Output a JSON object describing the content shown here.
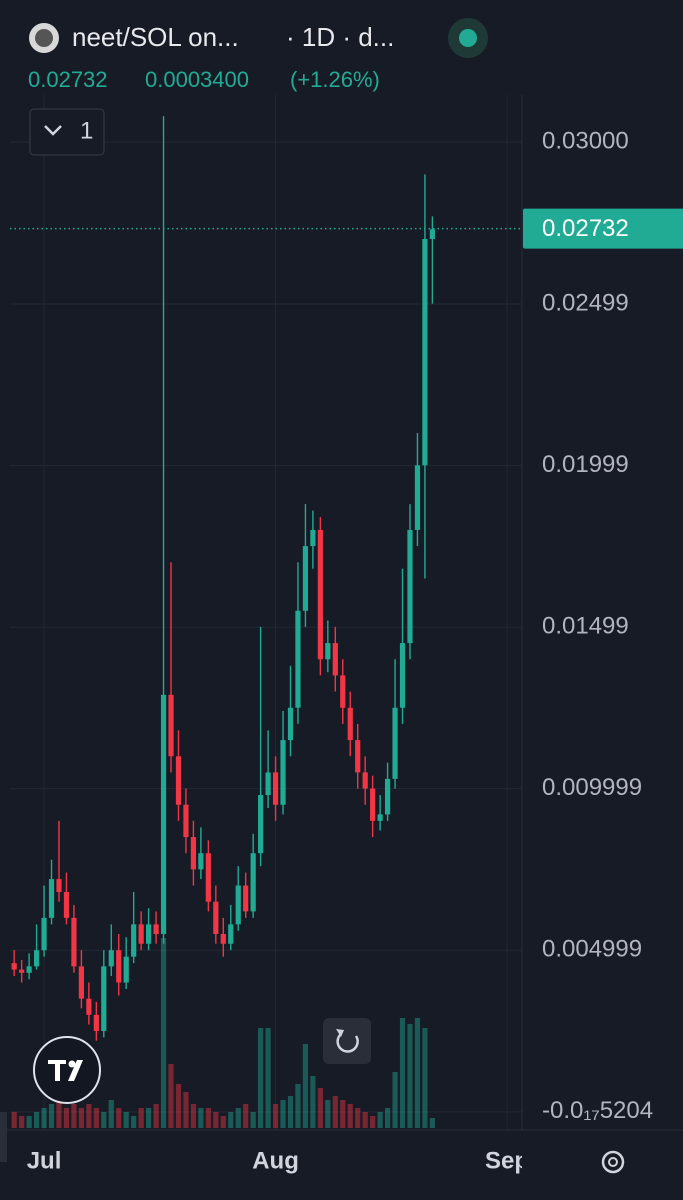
{
  "header": {
    "symbol": "neet/SOL on...",
    "interval": "· 1D · d...",
    "price": "0.02732",
    "change": "0.0003400",
    "change_pct": "(+1.26%)",
    "indicator_count": "1"
  },
  "chart_data": {
    "type": "candlestick",
    "up_color": "#22ab94",
    "down_color": "#f23645",
    "open": [
      0.0046,
      0.0044,
      0.0043,
      0.0045,
      0.005,
      0.006,
      0.0072,
      0.0068,
      0.006,
      0.0045,
      0.0035,
      0.003,
      0.0025,
      0.0045,
      0.005,
      0.004,
      0.0048,
      0.0058,
      0.0052,
      0.0058,
      0.0055,
      0.0129,
      0.011,
      0.0095,
      0.0085,
      0.0075,
      0.008,
      0.0065,
      0.0055,
      0.0052,
      0.0058,
      0.007,
      0.0062,
      0.008,
      0.0098,
      0.0105,
      0.0095,
      0.0115,
      0.0125,
      0.0155,
      0.0175,
      0.018,
      0.014,
      0.0145,
      0.0135,
      0.0125,
      0.0115,
      0.0105,
      0.01,
      0.009,
      0.0092,
      0.0103,
      0.0125,
      0.0145,
      0.018,
      0.02,
      0.027
    ],
    "high": [
      0.005,
      0.0047,
      0.0049,
      0.0058,
      0.007,
      0.0078,
      0.009,
      0.0074,
      0.0064,
      0.005,
      0.004,
      0.0034,
      0.005,
      0.0058,
      0.0055,
      0.0054,
      0.0068,
      0.0062,
      0.0063,
      0.0062,
      0.0308,
      0.017,
      0.0118,
      0.01,
      0.009,
      0.0088,
      0.0084,
      0.007,
      0.006,
      0.0064,
      0.0076,
      0.0074,
      0.0086,
      0.015,
      0.0118,
      0.011,
      0.0124,
      0.0138,
      0.017,
      0.0188,
      0.0186,
      0.0184,
      0.0152,
      0.015,
      0.014,
      0.013,
      0.012,
      0.011,
      0.0104,
      0.0098,
      0.0108,
      0.014,
      0.0168,
      0.0188,
      0.021,
      0.029,
      0.0277
    ],
    "low": [
      0.0042,
      0.004,
      0.0041,
      0.0044,
      0.0048,
      0.0058,
      0.0065,
      0.0058,
      0.0043,
      0.0032,
      0.0027,
      0.0022,
      0.0023,
      0.0042,
      0.0036,
      0.0038,
      0.0046,
      0.005,
      0.005,
      0.0052,
      0.0052,
      0.0105,
      0.009,
      0.008,
      0.007,
      0.0072,
      0.0062,
      0.0052,
      0.0048,
      0.005,
      0.0056,
      0.006,
      0.006,
      0.0076,
      0.0094,
      0.009,
      0.0092,
      0.011,
      0.012,
      0.015,
      0.0168,
      0.0135,
      0.0136,
      0.013,
      0.012,
      0.011,
      0.01,
      0.0095,
      0.0085,
      0.0087,
      0.009,
      0.01,
      0.012,
      0.014,
      0.0175,
      0.0165,
      0.025
    ],
    "close": [
      0.0044,
      0.0043,
      0.0045,
      0.005,
      0.006,
      0.0072,
      0.0068,
      0.006,
      0.0045,
      0.0035,
      0.003,
      0.0025,
      0.0045,
      0.005,
      0.004,
      0.0048,
      0.0058,
      0.0052,
      0.0058,
      0.0055,
      0.0129,
      0.011,
      0.0095,
      0.0085,
      0.0075,
      0.008,
      0.0065,
      0.0055,
      0.0052,
      0.0058,
      0.007,
      0.0062,
      0.008,
      0.0098,
      0.0105,
      0.0095,
      0.0115,
      0.0125,
      0.0155,
      0.0175,
      0.018,
      0.014,
      0.0145,
      0.0135,
      0.0125,
      0.0115,
      0.0105,
      0.01,
      0.009,
      0.0092,
      0.0103,
      0.0125,
      0.0145,
      0.018,
      0.02,
      0.027,
      0.0273
    ],
    "volume": [
      8,
      6,
      6,
      8,
      10,
      12,
      14,
      10,
      12,
      10,
      12,
      10,
      8,
      14,
      10,
      8,
      6,
      10,
      10,
      12,
      95,
      32,
      22,
      18,
      12,
      10,
      10,
      8,
      6,
      8,
      10,
      12,
      8,
      50,
      50,
      12,
      14,
      16,
      22,
      42,
      26,
      20,
      14,
      16,
      14,
      12,
      10,
      8,
      6,
      8,
      10,
      28,
      55,
      52,
      55,
      50,
      5
    ],
    "volume_lim": [
      0,
      100
    ],
    "xlim": [
      -1.9,
      68
    ],
    "xticks": [
      {
        "value": 4,
        "label": "Jul"
      },
      {
        "value": 35,
        "label": "Aug"
      },
      {
        "value": 66,
        "label": "Sep"
      }
    ],
    "ylim": [
      -0.0005,
      0.0313
    ],
    "yticks": [
      {
        "value": 0.03,
        "label": "0.03000"
      },
      0.02499,
      0.01999,
      0.01499,
      0.009999,
      0.004999,
      {
        "value": -5.204e-18,
        "label": "-0.0₁₇5204"
      }
    ],
    "last_price": 0.02732,
    "grid": true
  }
}
